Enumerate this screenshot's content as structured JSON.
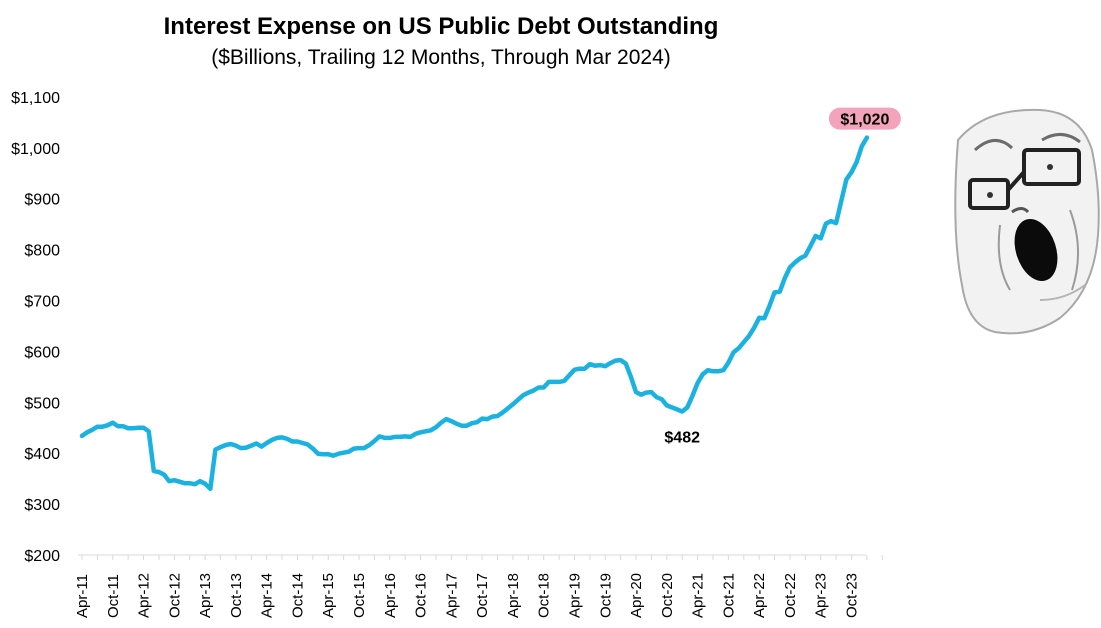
{
  "chart_data": {
    "type": "line",
    "title": "Interest Expense on US Public Debt Outstanding",
    "subtitle": "($Billions, Trailing 12 Months, Through Mar 2024)",
    "xlabel": "",
    "ylabel": "",
    "ylim": [
      200,
      1100
    ],
    "y_ticks": [
      200,
      300,
      400,
      500,
      600,
      700,
      800,
      900,
      1000,
      1100
    ],
    "y_tick_labels": [
      "$200",
      "$300",
      "$400",
      "$500",
      "$600",
      "$700",
      "$800",
      "$900",
      "$1,000",
      "$1,100"
    ],
    "x_ticks": [
      0,
      6,
      12,
      18,
      24,
      30,
      36,
      42,
      48,
      54,
      60,
      66,
      72,
      78,
      84,
      90,
      96,
      102,
      108,
      114,
      120,
      126,
      132,
      138,
      144,
      150
    ],
    "x_tick_labels": [
      "Apr-11",
      "Oct-11",
      "Apr-12",
      "Oct-12",
      "Apr-13",
      "Oct-13",
      "Apr-14",
      "Oct-14",
      "Apr-15",
      "Oct-15",
      "Apr-16",
      "Oct-16",
      "Apr-17",
      "Oct-17",
      "Apr-18",
      "Oct-18",
      "Apr-19",
      "Oct-19",
      "Apr-20",
      "Oct-20",
      "Apr-21",
      "Oct-21",
      "Apr-22",
      "Oct-22",
      "Apr-23",
      "Oct-23"
    ],
    "grid": false,
    "legend": "none",
    "line_color": "#1bb2e0",
    "series": [
      {
        "points": [
          [
            0,
            434
          ],
          [
            1,
            441
          ],
          [
            2,
            446
          ],
          [
            3,
            452
          ],
          [
            4,
            452
          ],
          [
            5,
            455
          ],
          [
            6,
            460
          ],
          [
            7,
            453
          ],
          [
            8,
            453
          ],
          [
            9,
            449
          ],
          [
            10,
            449
          ],
          [
            11,
            450
          ],
          [
            12,
            450
          ],
          [
            13,
            443
          ],
          [
            14,
            365
          ],
          [
            15,
            363
          ],
          [
            16,
            358
          ],
          [
            17,
            345
          ],
          [
            18,
            347
          ],
          [
            19,
            344
          ],
          [
            20,
            341
          ],
          [
            21,
            341
          ],
          [
            22,
            339
          ],
          [
            23,
            345
          ],
          [
            24,
            340
          ],
          [
            25,
            330
          ],
          [
            26,
            407
          ],
          [
            27,
            412
          ],
          [
            28,
            416
          ],
          [
            29,
            418
          ],
          [
            30,
            415
          ],
          [
            31,
            410
          ],
          [
            32,
            411
          ],
          [
            33,
            415
          ],
          [
            34,
            419
          ],
          [
            35,
            413
          ],
          [
            36,
            420
          ],
          [
            37,
            426
          ],
          [
            38,
            430
          ],
          [
            39,
            431
          ],
          [
            40,
            428
          ],
          [
            41,
            423
          ],
          [
            42,
            423
          ],
          [
            43,
            420
          ],
          [
            44,
            417
          ],
          [
            45,
            409
          ],
          [
            46,
            399
          ],
          [
            47,
            398
          ],
          [
            48,
            398
          ],
          [
            49,
            395
          ],
          [
            50,
            399
          ],
          [
            51,
            401
          ],
          [
            52,
            403
          ],
          [
            53,
            409
          ],
          [
            54,
            410
          ],
          [
            55,
            410
          ],
          [
            56,
            416
          ],
          [
            57,
            424
          ],
          [
            58,
            433
          ],
          [
            59,
            430
          ],
          [
            60,
            430
          ],
          [
            61,
            432
          ],
          [
            62,
            432
          ],
          [
            63,
            433
          ],
          [
            64,
            432
          ],
          [
            65,
            438
          ],
          [
            66,
            441
          ],
          [
            67,
            443
          ],
          [
            68,
            445
          ],
          [
            69,
            451
          ],
          [
            70,
            460
          ],
          [
            71,
            467
          ],
          [
            72,
            463
          ],
          [
            73,
            458
          ],
          [
            74,
            454
          ],
          [
            75,
            454
          ],
          [
            76,
            459
          ],
          [
            77,
            461
          ],
          [
            78,
            468
          ],
          [
            79,
            467
          ],
          [
            80,
            472
          ],
          [
            81,
            473
          ],
          [
            82,
            480
          ],
          [
            83,
            488
          ],
          [
            84,
            496
          ],
          [
            85,
            505
          ],
          [
            86,
            514
          ],
          [
            87,
            519
          ],
          [
            88,
            523
          ],
          [
            89,
            529
          ],
          [
            90,
            529
          ],
          [
            91,
            540
          ],
          [
            92,
            540
          ],
          [
            93,
            540
          ],
          [
            94,
            542
          ],
          [
            95,
            553
          ],
          [
            96,
            564
          ],
          [
            97,
            566
          ],
          [
            98,
            566
          ],
          [
            99,
            575
          ],
          [
            100,
            572
          ],
          [
            101,
            573
          ],
          [
            102,
            571
          ],
          [
            103,
            577
          ],
          [
            104,
            582
          ],
          [
            105,
            583
          ],
          [
            106,
            576
          ],
          [
            107,
            550
          ],
          [
            108,
            520
          ],
          [
            109,
            515
          ],
          [
            110,
            519
          ],
          [
            111,
            520
          ],
          [
            112,
            510
          ],
          [
            113,
            506
          ],
          [
            114,
            494
          ],
          [
            115,
            490
          ],
          [
            116,
            486
          ],
          [
            117,
            482
          ],
          [
            118,
            490
          ],
          [
            119,
            513
          ],
          [
            120,
            538
          ],
          [
            121,
            555
          ],
          [
            122,
            563
          ],
          [
            123,
            561
          ],
          [
            124,
            561
          ],
          [
            125,
            563
          ],
          [
            126,
            578
          ],
          [
            127,
            598
          ],
          [
            128,
            606
          ],
          [
            129,
            618
          ],
          [
            130,
            630
          ],
          [
            131,
            646
          ],
          [
            132,
            666
          ],
          [
            133,
            665
          ],
          [
            134,
            689
          ],
          [
            135,
            716
          ],
          [
            136,
            717
          ],
          [
            137,
            744
          ],
          [
            138,
            765
          ],
          [
            139,
            775
          ],
          [
            140,
            783
          ],
          [
            141,
            788
          ],
          [
            142,
            807
          ],
          [
            143,
            827
          ],
          [
            144,
            822
          ],
          [
            145,
            851
          ],
          [
            146,
            856
          ],
          [
            147,
            852
          ],
          [
            148,
            895
          ],
          [
            149,
            938
          ],
          [
            150,
            952
          ],
          [
            151,
            972
          ],
          [
            152,
            1003
          ],
          [
            153,
            1020
          ]
        ]
      }
    ],
    "annotations": [
      {
        "text": "$1,020",
        "x": 153,
        "y": 1020,
        "highlight_color": "#f4a3bd"
      },
      {
        "text": "$482",
        "x": 117,
        "y": 482
      }
    ]
  }
}
